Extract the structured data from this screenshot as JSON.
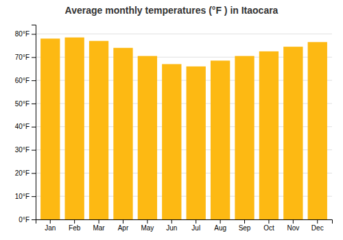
{
  "chart_data": {
    "type": "bar",
    "title": "Average monthly temperatures (°F ) in Itaocara",
    "categories": [
      "Jan",
      "Feb",
      "Mar",
      "Apr",
      "May",
      "Jun",
      "Jul",
      "Aug",
      "Sep",
      "Oct",
      "Nov",
      "Dec"
    ],
    "values": [
      78,
      78.5,
      77,
      74,
      70.5,
      67,
      66,
      68.5,
      70.5,
      72.5,
      74.5,
      76.5
    ],
    "color": "#FDB913",
    "ylim": [
      0,
      84
    ],
    "yticks": [
      {
        "value": 0,
        "label": "0°F"
      },
      {
        "value": 10,
        "label": "10°F"
      },
      {
        "value": 20,
        "label": "20°F"
      },
      {
        "value": 30,
        "label": "30°F"
      },
      {
        "value": 40,
        "label": "40°F"
      },
      {
        "value": 50,
        "label": "50°F"
      },
      {
        "value": 60,
        "label": "60°F"
      },
      {
        "value": 70,
        "label": "70°F"
      },
      {
        "value": 80,
        "label": "80°F"
      }
    ],
    "grid": true
  }
}
